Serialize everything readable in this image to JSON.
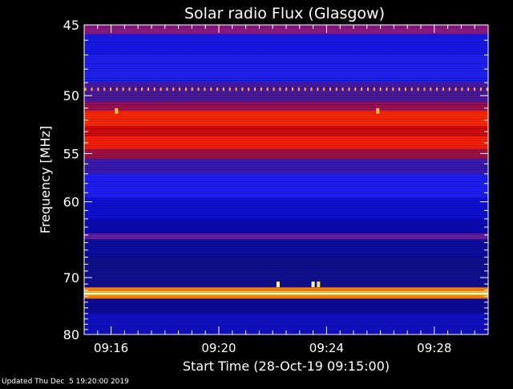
{
  "chart_data": {
    "type": "heatmap",
    "title": "Solar radio Flux (Glasgow)",
    "xlabel": "Start Time (28-Oct-19 09:15:00)",
    "ylabel": "Frequency [MHz]",
    "footer": "Updated Thu Dec  5 19:20:00 2019",
    "x_ticks": [
      "09:16",
      "09:20",
      "09:24",
      "09:28"
    ],
    "x_tick_values_min": [
      1,
      5,
      9,
      13
    ],
    "xlim_min": [
      0,
      15
    ],
    "y_ticks": [
      45,
      50,
      55,
      60,
      70,
      80
    ],
    "ylim": [
      45,
      80
    ],
    "y_scale": "reciprocal",
    "colormap": [
      "#000080",
      "#1414ff",
      "#6a1fa0",
      "#c80000",
      "#ff2000",
      "#ffa000",
      "#ffff90"
    ],
    "bands": [
      {
        "f_low": 45.0,
        "f_high": 45.6,
        "color": "#8a1a80"
      },
      {
        "f_low": 45.6,
        "f_high": 47.0,
        "color": "#1818e8"
      },
      {
        "f_low": 47.0,
        "f_high": 49.0,
        "color": "#2020f0"
      },
      {
        "f_low": 49.0,
        "f_high": 50.5,
        "color": "#4a1a9a"
      },
      {
        "f_low": 50.5,
        "f_high": 51.2,
        "color": "#a01050"
      },
      {
        "f_low": 51.2,
        "f_high": 52.5,
        "color": "#ff2800"
      },
      {
        "f_low": 52.5,
        "f_high": 53.4,
        "color": "#d80808"
      },
      {
        "f_low": 53.4,
        "f_high": 54.6,
        "color": "#ff2000"
      },
      {
        "f_low": 54.6,
        "f_high": 55.5,
        "color": "#a01040"
      },
      {
        "f_low": 55.5,
        "f_high": 57.0,
        "color": "#3a1ab0"
      },
      {
        "f_low": 57.0,
        "f_high": 59.5,
        "color": "#1e1ef5"
      },
      {
        "f_low": 59.5,
        "f_high": 62.0,
        "color": "#1010d8"
      },
      {
        "f_low": 62.0,
        "f_high": 63.8,
        "color": "#0a0ab0"
      },
      {
        "f_low": 63.8,
        "f_high": 64.6,
        "color": "#6a1fa0"
      },
      {
        "f_low": 64.6,
        "f_high": 67.0,
        "color": "#0c0ca0"
      },
      {
        "f_low": 67.0,
        "f_high": 71.5,
        "color": "#10108c"
      },
      {
        "f_low": 71.5,
        "f_high": 72.2,
        "color": "#ff8000"
      },
      {
        "f_low": 72.2,
        "f_high": 72.8,
        "color": "#ffff90"
      },
      {
        "f_low": 72.8,
        "f_high": 73.4,
        "color": "#ff8000"
      },
      {
        "f_low": 73.4,
        "f_high": 76.0,
        "color": "#0a0a96"
      },
      {
        "f_low": 76.0,
        "f_high": 80.0,
        "color": "#1010c0"
      }
    ],
    "bright_spots": [
      {
        "t_min": 7.2,
        "f": 71.0,
        "color": "#ffffa0"
      },
      {
        "t_min": 8.5,
        "f": 71.0,
        "color": "#ffffa0"
      },
      {
        "t_min": 8.7,
        "f": 71.0,
        "color": "#ffe070"
      },
      {
        "t_min": 1.2,
        "f": 51.2,
        "color": "#ffc040"
      },
      {
        "t_min": 10.9,
        "f": 51.2,
        "color": "#ffc040"
      }
    ],
    "grid": false,
    "legend": "none"
  }
}
